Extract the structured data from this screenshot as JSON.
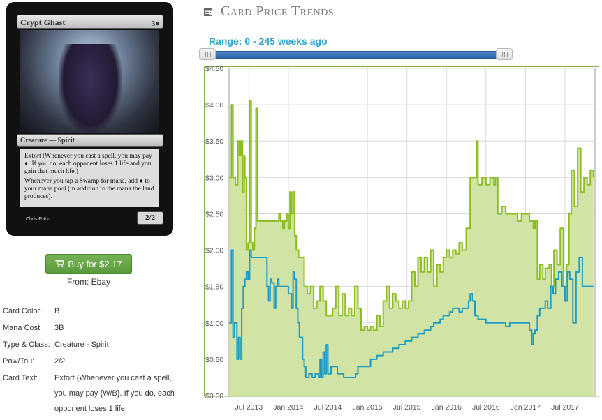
{
  "card": {
    "name": "Crypt Ghast",
    "cost": "3●",
    "type_line": "Creature — Spirit",
    "rules": [
      "Extort (Whenever you cast a spell, you may pay ◐. If you do, each opponent loses 1 life and you gain that much life.)",
      "Whenever you tap a Swamp for mana, add ● to your mana pool (in addition to the mana the land produces)."
    ],
    "pt": "2/2",
    "artist": "Chris Rahn"
  },
  "buy": {
    "label": "Buy for $2.17",
    "source": "From: Ebay"
  },
  "attributes": [
    {
      "label": "Card Color:",
      "value": "B"
    },
    {
      "label": "Mana Cost",
      "value": "3B"
    },
    {
      "label": "Type & Class:",
      "value": "Creature - Spirit"
    },
    {
      "label": "Pow/Tou:",
      "value": "2/2"
    },
    {
      "label": "Card Text:",
      "value": "Extort (Whenever you cast a spell, you may pay {W/B}. If you do, each opponent loses 1 life"
    }
  ],
  "header": {
    "title": "Card Price Trends",
    "icon": "calendar-icon"
  },
  "range": {
    "label": "Range: 0 - 245 weeks ago",
    "min_weeks": 0,
    "max_weeks": 245,
    "low_fraction": 0.0,
    "high_fraction": 0.97
  },
  "colors": {
    "green_line": "#8bbd1e",
    "green_fill": "#cfe3a0",
    "blue_line": "#1a9cc4",
    "slider": "#3a76bb",
    "button": "#6aa84f"
  },
  "chart_data": {
    "type": "area",
    "title": "",
    "xlabel": "",
    "ylabel": "",
    "ylim": [
      0,
      4.5
    ],
    "y_ticks": [
      "$0.00",
      "$0.50",
      "$1.00",
      "$1.50",
      "$2.00",
      "$2.50",
      "$3.00",
      "$3.50",
      "$4.00",
      "$4.50"
    ],
    "x_ticks": [
      {
        "label": "Jul 2013",
        "t": 2013.5
      },
      {
        "label": "Jan 2014",
        "t": 2014.0
      },
      {
        "label": "Jul 2014",
        "t": 2014.5
      },
      {
        "label": "Jan 2015",
        "t": 2015.0
      },
      {
        "label": "Jul 2015",
        "t": 2015.5
      },
      {
        "label": "Jan 2016",
        "t": 2016.0
      },
      {
        "label": "Jul 2016",
        "t": 2016.5
      },
      {
        "label": "Jan 2017",
        "t": 2017.0
      },
      {
        "label": "Jul 2017",
        "t": 2017.5
      }
    ],
    "xlim": [
      2013.25,
      2017.88
    ],
    "grid": true,
    "series": [
      {
        "color": "#8bbd1e",
        "fill": true,
        "points": [
          [
            2013.25,
            3.0
          ],
          [
            2013.28,
            4.0
          ],
          [
            2013.3,
            3.0
          ],
          [
            2013.33,
            2.9
          ],
          [
            2013.36,
            3.5
          ],
          [
            2013.38,
            3.3
          ],
          [
            2013.4,
            3.5
          ],
          [
            2013.42,
            2.8
          ],
          [
            2013.44,
            3.3
          ],
          [
            2013.45,
            3.0
          ],
          [
            2013.47,
            2.0
          ],
          [
            2013.49,
            2.1
          ],
          [
            2013.51,
            4.05
          ],
          [
            2013.53,
            2.1
          ],
          [
            2013.55,
            2.0
          ],
          [
            2013.57,
            2.3
          ],
          [
            2013.59,
            3.95
          ],
          [
            2013.61,
            2.4
          ],
          [
            2013.65,
            2.4
          ],
          [
            2013.7,
            2.4
          ],
          [
            2013.75,
            2.4
          ],
          [
            2013.8,
            2.4
          ],
          [
            2013.85,
            2.4
          ],
          [
            2013.88,
            2.5
          ],
          [
            2013.9,
            2.4
          ],
          [
            2013.93,
            2.3
          ],
          [
            2013.95,
            2.4
          ],
          [
            2013.98,
            2.5
          ],
          [
            2014.0,
            2.3
          ],
          [
            2014.02,
            2.8
          ],
          [
            2014.04,
            2.5
          ],
          [
            2014.06,
            2.8
          ],
          [
            2014.08,
            2.2
          ],
          [
            2014.1,
            2.0
          ],
          [
            2014.13,
            1.9
          ],
          [
            2014.16,
            1.9
          ],
          [
            2014.2,
            1.5
          ],
          [
            2014.24,
            1.4
          ],
          [
            2014.28,
            1.5
          ],
          [
            2014.32,
            1.2
          ],
          [
            2014.36,
            1.3
          ],
          [
            2014.4,
            1.5
          ],
          [
            2014.44,
            1.3
          ],
          [
            2014.48,
            1.1
          ],
          [
            2014.52,
            1.1
          ],
          [
            2014.56,
            1.2
          ],
          [
            2014.6,
            1.5
          ],
          [
            2014.64,
            1.1
          ],
          [
            2014.68,
            1.4
          ],
          [
            2014.72,
            1.1
          ],
          [
            2014.76,
            1.2
          ],
          [
            2014.8,
            1.1
          ],
          [
            2014.84,
            1.5
          ],
          [
            2014.88,
            1.2
          ],
          [
            2014.92,
            0.9
          ],
          [
            2014.96,
            0.95
          ],
          [
            2015.0,
            0.9
          ],
          [
            2015.04,
            0.95
          ],
          [
            2015.08,
            0.9
          ],
          [
            2015.12,
            1.1
          ],
          [
            2015.16,
            0.95
          ],
          [
            2015.2,
            1.3
          ],
          [
            2015.24,
            1.5
          ],
          [
            2015.28,
            1.2
          ],
          [
            2015.32,
            1.4
          ],
          [
            2015.36,
            1.3
          ],
          [
            2015.4,
            1.2
          ],
          [
            2015.44,
            1.3
          ],
          [
            2015.48,
            1.2
          ],
          [
            2015.52,
            1.3
          ],
          [
            2015.56,
            1.7
          ],
          [
            2015.6,
            1.5
          ],
          [
            2015.64,
            1.9
          ],
          [
            2015.68,
            1.7
          ],
          [
            2015.72,
            1.9
          ],
          [
            2015.76,
            1.7
          ],
          [
            2015.8,
            2.0
          ],
          [
            2015.84,
            1.5
          ],
          [
            2015.88,
            1.8
          ],
          [
            2015.92,
            1.7
          ],
          [
            2015.96,
            1.9
          ],
          [
            2016.0,
            2.0
          ],
          [
            2016.04,
            1.9
          ],
          [
            2016.08,
            2.0
          ],
          [
            2016.12,
            1.95
          ],
          [
            2016.16,
            2.1
          ],
          [
            2016.2,
            2.0
          ],
          [
            2016.25,
            2.3
          ],
          [
            2016.3,
            3.0
          ],
          [
            2016.35,
            3.0
          ],
          [
            2016.38,
            3.5
          ],
          [
            2016.4,
            2.9
          ],
          [
            2016.45,
            3.0
          ],
          [
            2016.5,
            2.9
          ],
          [
            2016.55,
            3.0
          ],
          [
            2016.6,
            2.9
          ],
          [
            2016.62,
            3.0
          ],
          [
            2016.65,
            2.5
          ],
          [
            2016.7,
            2.6
          ],
          [
            2016.75,
            2.5
          ],
          [
            2016.8,
            2.5
          ],
          [
            2016.85,
            2.5
          ],
          [
            2016.9,
            2.4
          ],
          [
            2016.95,
            2.5
          ],
          [
            2017.0,
            2.5
          ],
          [
            2017.05,
            2.4
          ],
          [
            2017.1,
            2.3
          ],
          [
            2017.12,
            2.4
          ],
          [
            2017.15,
            1.6
          ],
          [
            2017.18,
            1.8
          ],
          [
            2017.22,
            1.6
          ],
          [
            2017.25,
            1.75
          ],
          [
            2017.3,
            1.8
          ],
          [
            2017.33,
            1.5
          ],
          [
            2017.36,
            2.0
          ],
          [
            2017.4,
            1.8
          ],
          [
            2017.44,
            2.3
          ],
          [
            2017.48,
            1.5
          ],
          [
            2017.52,
            1.8
          ],
          [
            2017.55,
            2.5
          ],
          [
            2017.58,
            3.1
          ],
          [
            2017.62,
            2.6
          ],
          [
            2017.66,
            3.4
          ],
          [
            2017.7,
            2.8
          ],
          [
            2017.74,
            3.0
          ],
          [
            2017.78,
            2.9
          ],
          [
            2017.82,
            3.1
          ],
          [
            2017.86,
            3.0
          ]
        ]
      },
      {
        "color": "#1a9cc4",
        "fill": false,
        "points": [
          [
            2013.25,
            1.0
          ],
          [
            2013.28,
            2.0
          ],
          [
            2013.3,
            0.8
          ],
          [
            2013.32,
            1.0
          ],
          [
            2013.35,
            0.5
          ],
          [
            2013.37,
            0.8
          ],
          [
            2013.39,
            0.5
          ],
          [
            2013.41,
            1.2
          ],
          [
            2013.43,
            1.5
          ],
          [
            2013.45,
            1.6
          ],
          [
            2013.47,
            1.7
          ],
          [
            2013.49,
            1.6
          ],
          [
            2013.51,
            2.0
          ],
          [
            2013.53,
            1.9
          ],
          [
            2013.57,
            1.9
          ],
          [
            2013.62,
            1.9
          ],
          [
            2013.66,
            1.9
          ],
          [
            2013.7,
            1.9
          ],
          [
            2013.73,
            1.5
          ],
          [
            2013.75,
            1.3
          ],
          [
            2013.77,
            1.6
          ],
          [
            2013.79,
            1.55
          ],
          [
            2013.82,
            1.2
          ],
          [
            2013.84,
            1.5
          ],
          [
            2013.86,
            1.6
          ],
          [
            2013.88,
            1.5
          ],
          [
            2013.92,
            1.5
          ],
          [
            2013.96,
            1.5
          ],
          [
            2014.0,
            1.4
          ],
          [
            2014.04,
            1.2
          ],
          [
            2014.06,
            1.7
          ],
          [
            2014.08,
            1.6
          ],
          [
            2014.1,
            1.2
          ],
          [
            2014.12,
            1.0
          ],
          [
            2014.14,
            0.8
          ],
          [
            2014.16,
            0.8
          ],
          [
            2014.18,
            0.5
          ],
          [
            2014.2,
            0.4
          ],
          [
            2014.22,
            0.25
          ],
          [
            2014.26,
            0.3
          ],
          [
            2014.3,
            0.25
          ],
          [
            2014.34,
            0.3
          ],
          [
            2014.38,
            0.25
          ],
          [
            2014.4,
            0.5
          ],
          [
            2014.42,
            0.25
          ],
          [
            2014.44,
            0.6
          ],
          [
            2014.46,
            0.3
          ],
          [
            2014.48,
            0.7
          ],
          [
            2014.5,
            0.3
          ],
          [
            2014.54,
            0.4
          ],
          [
            2014.58,
            0.4
          ],
          [
            2014.62,
            0.3
          ],
          [
            2014.66,
            0.3
          ],
          [
            2014.7,
            0.25
          ],
          [
            2014.75,
            0.25
          ],
          [
            2014.8,
            0.25
          ],
          [
            2014.85,
            0.3
          ],
          [
            2014.88,
            0.4
          ],
          [
            2014.92,
            0.4
          ],
          [
            2014.96,
            0.4
          ],
          [
            2015.0,
            0.4
          ],
          [
            2015.04,
            0.5
          ],
          [
            2015.08,
            0.5
          ],
          [
            2015.12,
            0.55
          ],
          [
            2015.16,
            0.55
          ],
          [
            2015.2,
            0.6
          ],
          [
            2015.24,
            0.6
          ],
          [
            2015.28,
            0.6
          ],
          [
            2015.32,
            0.65
          ],
          [
            2015.36,
            0.65
          ],
          [
            2015.4,
            0.7
          ],
          [
            2015.44,
            0.7
          ],
          [
            2015.48,
            0.75
          ],
          [
            2015.52,
            0.75
          ],
          [
            2015.56,
            0.8
          ],
          [
            2015.6,
            0.8
          ],
          [
            2015.64,
            0.85
          ],
          [
            2015.68,
            0.85
          ],
          [
            2015.72,
            0.9
          ],
          [
            2015.76,
            0.9
          ],
          [
            2015.8,
            0.95
          ],
          [
            2015.84,
            1.0
          ],
          [
            2015.88,
            1.0
          ],
          [
            2015.92,
            1.05
          ],
          [
            2015.96,
            1.1
          ],
          [
            2016.0,
            1.1
          ],
          [
            2016.04,
            1.15
          ],
          [
            2016.08,
            1.2
          ],
          [
            2016.12,
            1.2
          ],
          [
            2016.16,
            1.15
          ],
          [
            2016.2,
            1.2
          ],
          [
            2016.25,
            1.2
          ],
          [
            2016.28,
            1.3
          ],
          [
            2016.3,
            1.4
          ],
          [
            2016.33,
            1.3
          ],
          [
            2016.36,
            1.1
          ],
          [
            2016.4,
            1.05
          ],
          [
            2016.45,
            1.05
          ],
          [
            2016.5,
            1.0
          ],
          [
            2016.55,
            1.0
          ],
          [
            2016.6,
            1.0
          ],
          [
            2016.65,
            1.0
          ],
          [
            2016.7,
            1.0
          ],
          [
            2016.75,
            0.95
          ],
          [
            2016.8,
            1.0
          ],
          [
            2016.85,
            1.0
          ],
          [
            2016.9,
            1.0
          ],
          [
            2016.95,
            1.0
          ],
          [
            2017.0,
            1.0
          ],
          [
            2017.05,
            0.9
          ],
          [
            2017.08,
            0.7
          ],
          [
            2017.1,
            0.85
          ],
          [
            2017.12,
            0.9
          ],
          [
            2017.15,
            1.1
          ],
          [
            2017.18,
            1.2
          ],
          [
            2017.22,
            1.2
          ],
          [
            2017.25,
            1.3
          ],
          [
            2017.28,
            1.2
          ],
          [
            2017.32,
            1.5
          ],
          [
            2017.35,
            1.4
          ],
          [
            2017.38,
            1.6
          ],
          [
            2017.42,
            1.7
          ],
          [
            2017.46,
            1.5
          ],
          [
            2017.5,
            1.3
          ],
          [
            2017.53,
            1.7
          ],
          [
            2017.56,
            1.6
          ],
          [
            2017.6,
            1.0
          ],
          [
            2017.64,
            1.7
          ],
          [
            2017.68,
            1.9
          ],
          [
            2017.72,
            1.5
          ],
          [
            2017.76,
            1.5
          ],
          [
            2017.8,
            1.5
          ],
          [
            2017.86,
            1.5
          ]
        ]
      }
    ]
  }
}
